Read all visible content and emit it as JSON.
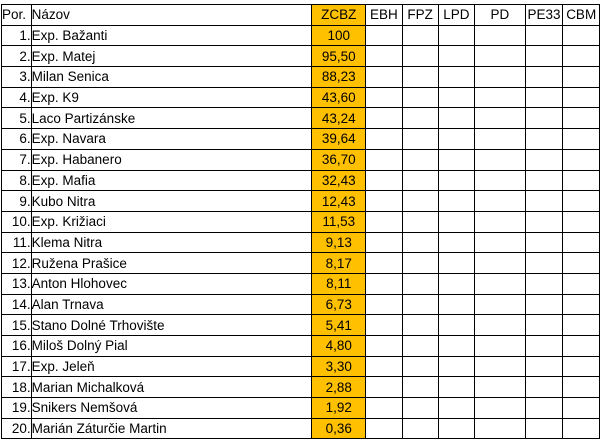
{
  "table": {
    "headers": {
      "por": "Por.",
      "nazov": "Názov",
      "zcbz": "ZCBZ",
      "ebh": "EBH",
      "fpz": "FPZ",
      "lpd": "LPD",
      "pd": "PD",
      "pe33": "PE33",
      "cbm": "CBM"
    },
    "rows": [
      {
        "por": "1.",
        "nazov": "Exp. Bažanti",
        "zcbz": "100"
      },
      {
        "por": "2.",
        "nazov": "Exp. Matej",
        "zcbz": "95,50"
      },
      {
        "por": "3.",
        "nazov": "Milan Senica",
        "zcbz": "88,23"
      },
      {
        "por": "4.",
        "nazov": "Exp. K9",
        "zcbz": "43,60"
      },
      {
        "por": "5.",
        "nazov": "Laco Partizánske",
        "zcbz": "43,24"
      },
      {
        "por": "6.",
        "nazov": "Exp. Navara",
        "zcbz": "39,64"
      },
      {
        "por": "7.",
        "nazov": "Exp. Habanero",
        "zcbz": "36,70"
      },
      {
        "por": "8.",
        "nazov": "Exp. Mafia",
        "zcbz": "32,43"
      },
      {
        "por": "9.",
        "nazov": "Kubo Nitra",
        "zcbz": "12,43"
      },
      {
        "por": "10.",
        "nazov": "Exp. Križiaci",
        "zcbz": "11,53"
      },
      {
        "por": "11.",
        "nazov": "Klema Nitra",
        "zcbz": "9,13"
      },
      {
        "por": "12.",
        "nazov": "Ružena Prašice",
        "zcbz": "8,17"
      },
      {
        "por": "13.",
        "nazov": "Anton Hlohovec",
        "zcbz": "8,11"
      },
      {
        "por": "14.",
        "nazov": "Alan Trnava",
        "zcbz": "6,73"
      },
      {
        "por": "15.",
        "nazov": "Stano Dolné Trhovište",
        "zcbz": "5,41"
      },
      {
        "por": "16.",
        "nazov": "Miloš Dolný Pial",
        "zcbz": "4,80"
      },
      {
        "por": "17.",
        "nazov": "Exp. Jeleň",
        "zcbz": "3,30"
      },
      {
        "por": "18.",
        "nazov": "Marian Michalková",
        "zcbz": "2,88"
      },
      {
        "por": "19.",
        "nazov": "Snikers Nemšová",
        "zcbz": "1,92"
      },
      {
        "por": "20.",
        "nazov": "Marián Záturčie Martin",
        "zcbz": "0,36"
      }
    ],
    "colors": {
      "highlight": "#ffc000",
      "border": "#000000"
    }
  }
}
